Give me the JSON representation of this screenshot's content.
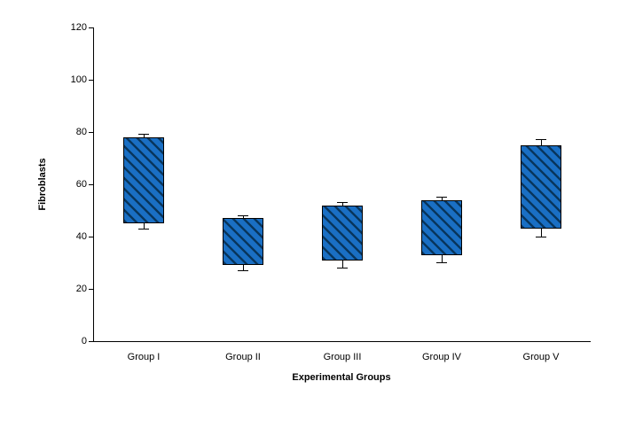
{
  "chart_data": {
    "type": "box",
    "title": "",
    "xlabel": "Experimental Groups",
    "ylabel": "Fibroblasts",
    "ylim": [
      0,
      120
    ],
    "yticks": [
      0,
      20,
      40,
      60,
      80,
      100,
      120
    ],
    "categories": [
      "Group I",
      "Group II",
      "Group III",
      "Group IV",
      "Group V"
    ],
    "boxes": [
      {
        "category": "Group I",
        "whisker_low": 43,
        "box_low": 45,
        "box_high": 78,
        "whisker_high": 79
      },
      {
        "category": "Group II",
        "whisker_low": 27,
        "box_low": 29,
        "box_high": 47,
        "whisker_high": 48
      },
      {
        "category": "Group III",
        "whisker_low": 28,
        "box_low": 31,
        "box_high": 52,
        "whisker_high": 53
      },
      {
        "category": "Group IV",
        "whisker_low": 30,
        "box_low": 33,
        "box_high": 54,
        "whisker_high": 55
      },
      {
        "category": "Group V",
        "whisker_low": 40,
        "box_low": 43,
        "box_high": 75,
        "whisker_high": 77
      }
    ],
    "colors": {
      "box_fill": "#1a6fc4",
      "hatch": "#08365e",
      "box_border": "#000000",
      "axis": "#000000",
      "background": "#ffffff"
    },
    "grid": "off",
    "legend": "none"
  }
}
